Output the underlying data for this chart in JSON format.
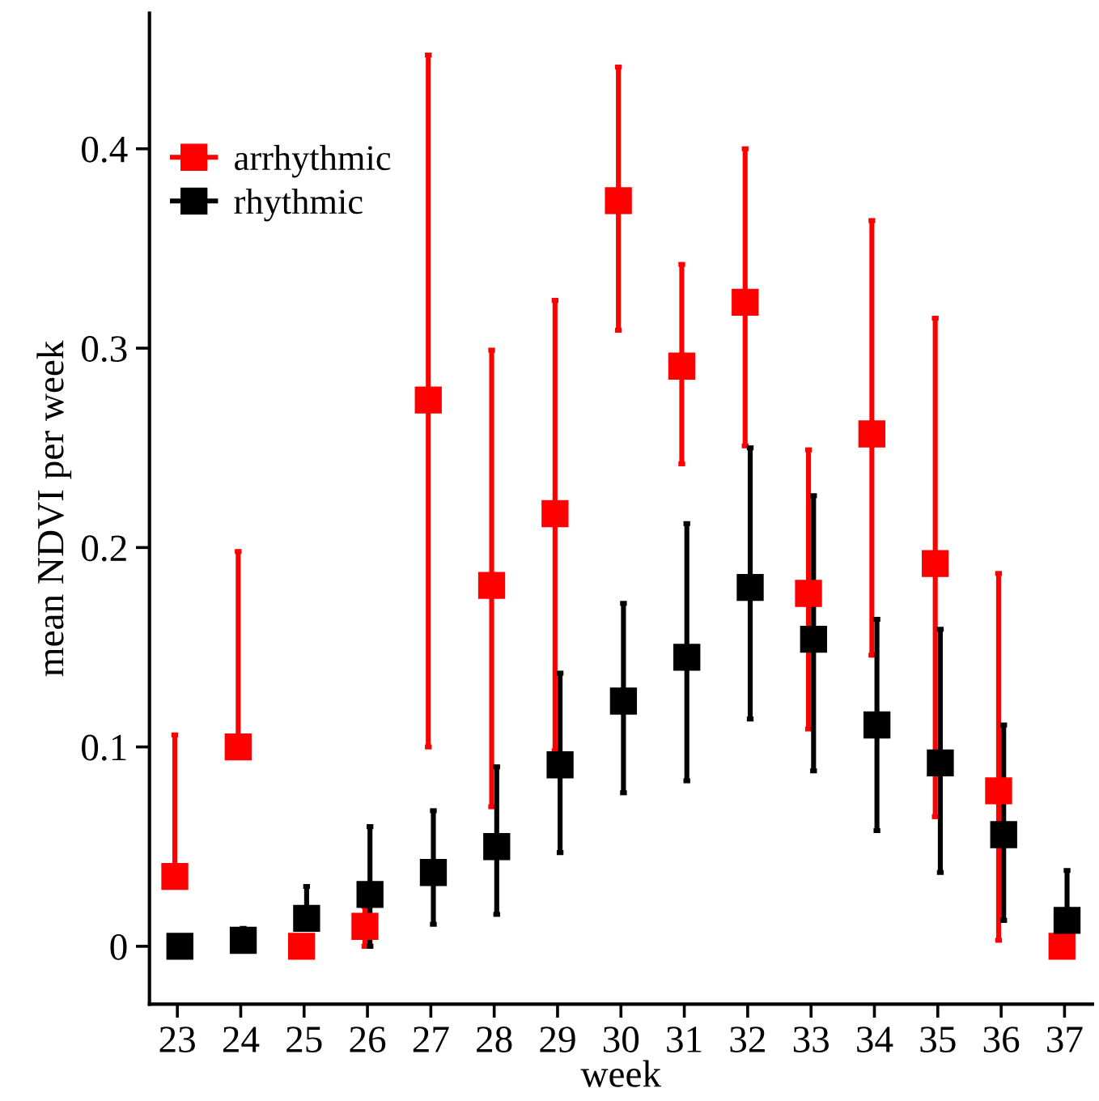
{
  "chart_data": {
    "type": "scatter",
    "xlabel": "week",
    "ylabel": "mean NDVI per week",
    "x": [
      23,
      24,
      25,
      26,
      27,
      28,
      29,
      30,
      31,
      32,
      33,
      34,
      35,
      36,
      37
    ],
    "series": [
      {
        "name": "arrhythmic",
        "color": "#ff0000",
        "values": [
          0.035,
          0.1,
          0,
          0.01,
          0.274,
          0.181,
          0.217,
          0.374,
          0.291,
          0.323,
          0.177,
          0.257,
          0.192,
          0.078,
          0
        ],
        "errors": [
          [
            0.035,
            0.106
          ],
          [
            0.1,
            0.198
          ],
          null,
          [
            0,
            0.02
          ],
          [
            0.1,
            0.447
          ],
          [
            0.07,
            0.299
          ],
          [
            0.098,
            0.324
          ],
          [
            0.309,
            0.441
          ],
          [
            0.242,
            0.342
          ],
          [
            0.251,
            0.4
          ],
          [
            0.109,
            0.249
          ],
          [
            0.146,
            0.364
          ],
          [
            0.065,
            0.315
          ],
          [
            0.003,
            0.187
          ],
          null
        ]
      },
      {
        "name": "rhythmic",
        "color": "#000000",
        "values": [
          0,
          0.003,
          0.014,
          0.026,
          0.037,
          0.05,
          0.091,
          0.123,
          0.145,
          0.18,
          0.154,
          0.111,
          0.092,
          0.056,
          0.013
        ],
        "errors": [
          null,
          [
            0.003,
            0.009
          ],
          [
            0.014,
            0.03
          ],
          [
            0,
            0.06
          ],
          [
            0.011,
            0.068
          ],
          [
            0.016,
            0.09
          ],
          [
            0.047,
            0.137
          ],
          [
            0.077,
            0.172
          ],
          [
            0.083,
            0.212
          ],
          [
            0.114,
            0.25
          ],
          [
            0.088,
            0.226
          ],
          [
            0.058,
            0.164
          ],
          [
            0.037,
            0.159
          ],
          [
            0.013,
            0.111
          ],
          [
            0.013,
            0.038
          ]
        ]
      }
    ],
    "xlim": [
      22.56,
      37.44
    ],
    "xticks": [
      23,
      24,
      25,
      26,
      27,
      28,
      29,
      30,
      31,
      32,
      33,
      34,
      35,
      36,
      37
    ],
    "ylim": [
      -0.029,
      0.468
    ],
    "yticks": [
      0,
      0.1,
      0.2,
      0.3,
      0.4
    ],
    "marker": "square",
    "grid": false,
    "legend": "top left"
  }
}
